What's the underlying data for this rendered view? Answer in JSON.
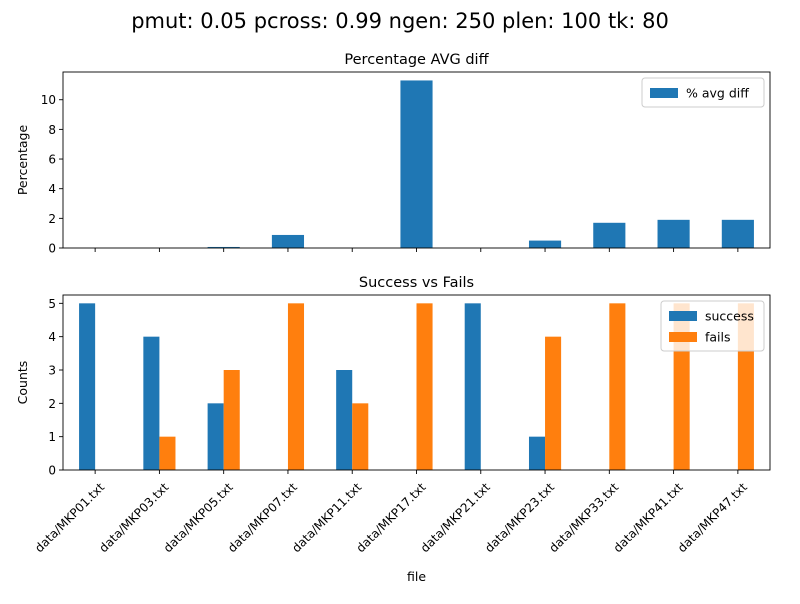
{
  "figure_title": "pmut: 0.05 pcross: 0.99 ngen: 250 plen: 100 tk: 80",
  "chart_data": [
    {
      "type": "bar",
      "title": "Percentage AVG diff",
      "xlabel": "",
      "ylabel": "Percentage",
      "categories": [
        "data/MKP01.txt",
        "data/MKP03.txt",
        "data/MKP05.txt",
        "data/MKP07.txt",
        "data/MKP11.txt",
        "data/MKP17.txt",
        "data/MKP21.txt",
        "data/MKP23.txt",
        "data/MKP33.txt",
        "data/MKP41.txt",
        "data/MKP47.txt"
      ],
      "series": [
        {
          "name": "% avg diff",
          "color": "#1f77b4",
          "values": [
            0,
            0,
            0.07,
            0.88,
            0,
            11.3,
            0,
            0.5,
            1.7,
            1.9,
            1.9
          ]
        }
      ],
      "ylim": [
        0,
        11.87
      ],
      "yticks": [
        0,
        2,
        4,
        6,
        8,
        10
      ],
      "legend": "top-right",
      "grid": false
    },
    {
      "type": "bar",
      "title": "Success vs Fails",
      "xlabel": "file",
      "ylabel": "Counts",
      "categories": [
        "data/MKP01.txt",
        "data/MKP03.txt",
        "data/MKP05.txt",
        "data/MKP07.txt",
        "data/MKP11.txt",
        "data/MKP17.txt",
        "data/MKP21.txt",
        "data/MKP23.txt",
        "data/MKP33.txt",
        "data/MKP41.txt",
        "data/MKP47.txt"
      ],
      "series": [
        {
          "name": "success",
          "color": "#1f77b4",
          "values": [
            5,
            4,
            2,
            0,
            3,
            0,
            5,
            1,
            0,
            0,
            0
          ]
        },
        {
          "name": "fails",
          "color": "#ff7f0e",
          "values": [
            0,
            1,
            3,
            5,
            2,
            5,
            0,
            4,
            5,
            5,
            5
          ]
        }
      ],
      "ylim": [
        0,
        5.25
      ],
      "yticks": [
        0,
        1,
        2,
        3,
        4,
        5
      ],
      "legend": "top-right",
      "grid": false
    }
  ]
}
